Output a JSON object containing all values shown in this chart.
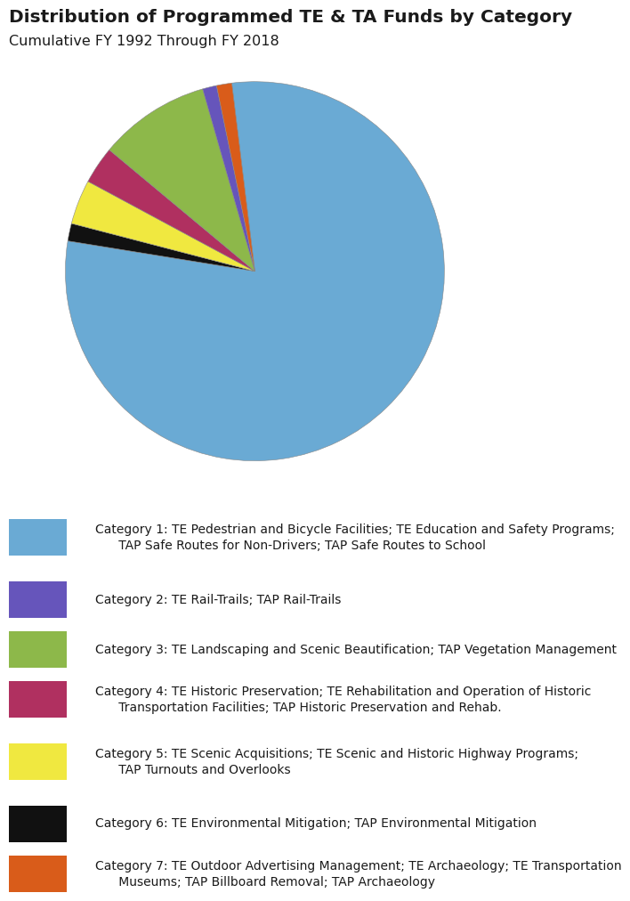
{
  "title": "Distribution of Programmed TE & TA Funds by Category",
  "subtitle": "Cumulative FY 1992 Through FY 2018",
  "slices": [
    79.5,
    1.2,
    9.5,
    3.2,
    3.8,
    1.5,
    1.3
  ],
  "colors": [
    "#6aaad4",
    "#6655bb",
    "#8db84a",
    "#b03060",
    "#f0e840",
    "#111111",
    "#d95c1a"
  ],
  "slice_order": [
    0,
    5,
    4,
    3,
    2,
    1,
    6
  ],
  "startangle": 97,
  "categories": [
    "Category 1: TE Pedestrian and Bicycle Facilities; TE Education and Safety Programs;\n      TAP Safe Routes for Non-Drivers; TAP Safe Routes to School",
    "Category 2: TE Rail-Trails; TAP Rail-Trails",
    "Category 3: TE Landscaping and Scenic Beautification; TAP Vegetation Management",
    "Category 4: TE Historic Preservation; TE Rehabilitation and Operation of Historic\n      Transportation Facilities; TAP Historic Preservation and Rehab.",
    "Category 5: TE Scenic Acquisitions; TE Scenic and Historic Highway Programs;\n      TAP Turnouts and Overlooks",
    "Category 6: TE Environmental Mitigation; TAP Environmental Mitigation",
    "Category 7: TE Outdoor Advertising Management; TE Archaeology; TE Transportation\n      Museums; TAP Billboard Removal; TAP Archaeology"
  ],
  "background_color": "#ffffff",
  "title_fontsize": 14.5,
  "subtitle_fontsize": 11.5,
  "legend_fontsize": 10
}
